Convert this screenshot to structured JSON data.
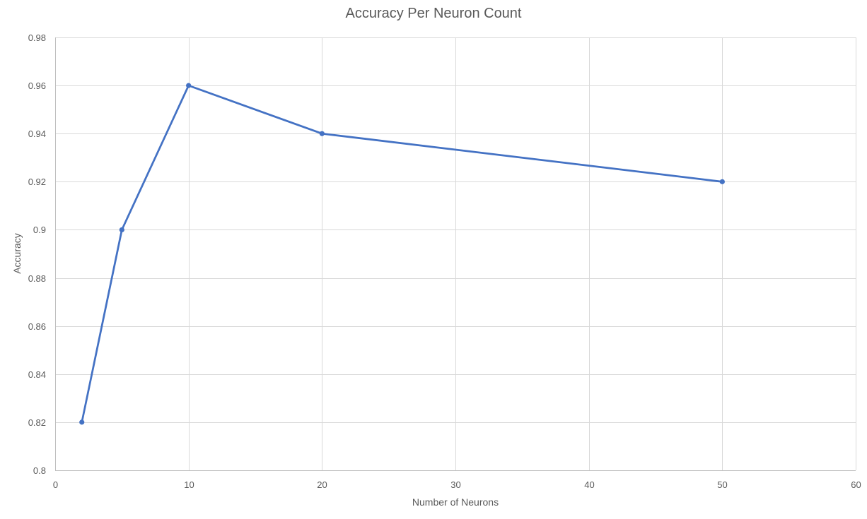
{
  "chart_data": {
    "type": "line",
    "title": "Accuracy Per Neuron Count",
    "xlabel": "Number of Neurons",
    "ylabel": "Accuracy",
    "xlim": [
      0,
      60
    ],
    "ylim": [
      0.8,
      0.98
    ],
    "x_ticks": [
      0,
      10,
      20,
      30,
      40,
      50,
      60
    ],
    "y_ticks": [
      0.8,
      0.82,
      0.84,
      0.86,
      0.88,
      0.9,
      0.92,
      0.94,
      0.96,
      0.98
    ],
    "x_tick_labels": [
      "0",
      "10",
      "20",
      "30",
      "40",
      "50",
      "60"
    ],
    "y_tick_labels": [
      "0.8",
      "0.82",
      "0.84",
      "0.86",
      "0.88",
      "0.9",
      "0.92",
      "0.94",
      "0.96",
      "0.98"
    ],
    "grid": true,
    "legend": "none",
    "series": [
      {
        "color": "#4472c4",
        "x": [
          2,
          5,
          10,
          20,
          50
        ],
        "y": [
          0.82,
          0.9,
          0.96,
          0.94,
          0.92
        ]
      }
    ]
  }
}
